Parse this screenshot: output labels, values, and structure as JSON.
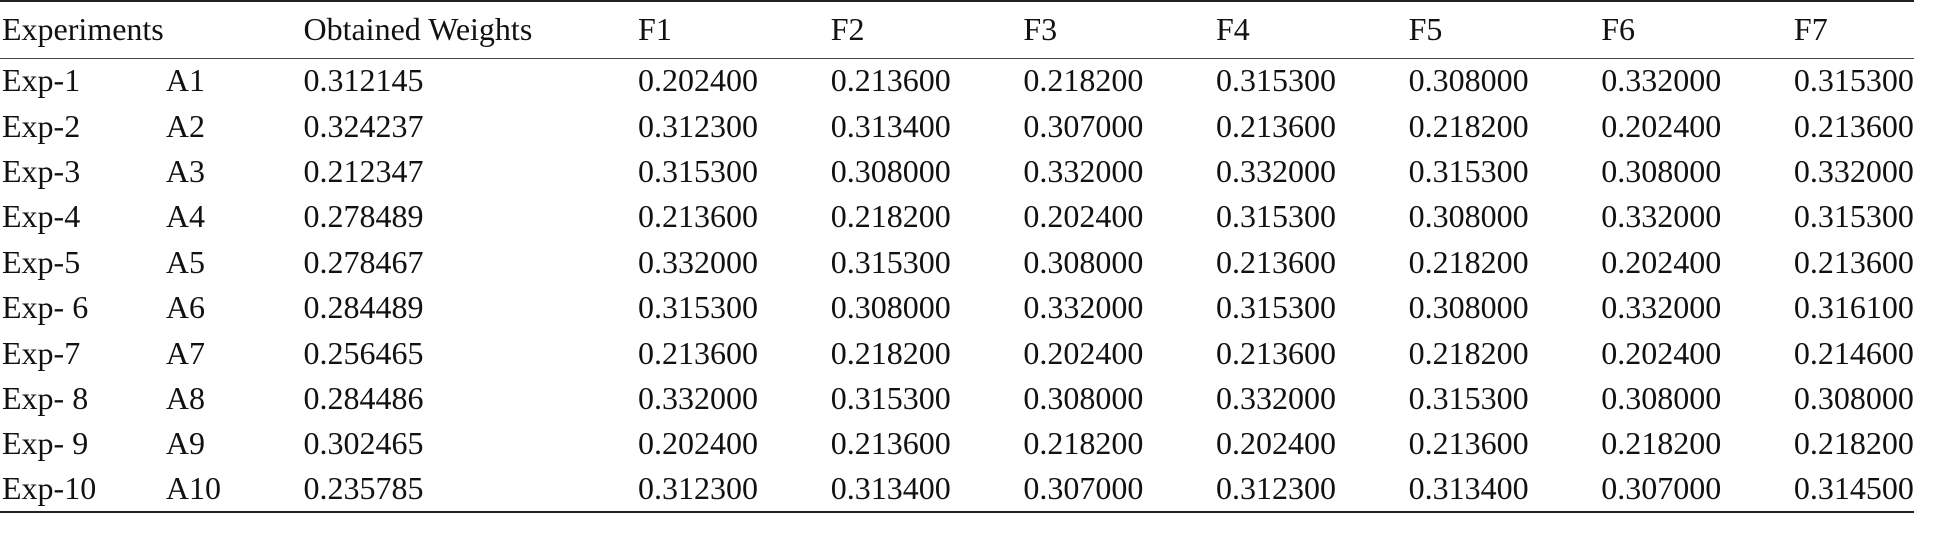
{
  "table": {
    "headers": {
      "experiments": "Experiments",
      "weights": "Obtained Weights",
      "f1": "F1",
      "f2": "F2",
      "f3": "F3",
      "f4": "F4",
      "f5": "F5",
      "f6": "F6",
      "f7": "F7"
    },
    "rows": [
      {
        "exp": "Exp-1",
        "alt": "A1",
        "weight": "0.312145",
        "f1": "0.202400",
        "f2": "0.213600",
        "f3": "0.218200",
        "f4": "0.315300",
        "f5": "0.308000",
        "f6": "0.332000",
        "f7": "0.315300"
      },
      {
        "exp": "Exp-2",
        "alt": "A2",
        "weight": "0.324237",
        "f1": "0.312300",
        "f2": "0.313400",
        "f3": "0.307000",
        "f4": "0.213600",
        "f5": "0.218200",
        "f6": "0.202400",
        "f7": "0.213600"
      },
      {
        "exp": "Exp-3",
        "alt": "A3",
        "weight": "0.212347",
        "f1": "0.315300",
        "f2": "0.308000",
        "f3": "0.332000",
        "f4": "0.332000",
        "f5": "0.315300",
        "f6": "0.308000",
        "f7": "0.332000"
      },
      {
        "exp": "Exp-4",
        "alt": "A4",
        "weight": "0.278489",
        "f1": "0.213600",
        "f2": "0.218200",
        "f3": "0.202400",
        "f4": "0.315300",
        "f5": "0.308000",
        "f6": "0.332000",
        "f7": "0.315300"
      },
      {
        "exp": "Exp-5",
        "alt": "A5",
        "weight": "0.278467",
        "f1": "0.332000",
        "f2": "0.315300",
        "f3": "0.308000",
        "f4": "0.213600",
        "f5": "0.218200",
        "f6": "0.202400",
        "f7": "0.213600"
      },
      {
        "exp": "Exp- 6",
        "alt": "A6",
        "weight": "0.284489",
        "f1": "0.315300",
        "f2": "0.308000",
        "f3": "0.332000",
        "f4": "0.315300",
        "f5": "0.308000",
        "f6": "0.332000",
        "f7": "0.316100"
      },
      {
        "exp": "Exp-7",
        "alt": "A7",
        "weight": "0.256465",
        "f1": "0.213600",
        "f2": "0.218200",
        "f3": "0.202400",
        "f4": "0.213600",
        "f5": "0.218200",
        "f6": "0.202400",
        "f7": "0.214600"
      },
      {
        "exp": "Exp- 8",
        "alt": "A8",
        "weight": "0.284486",
        "f1": "0.332000",
        "f2": "0.315300",
        "f3": "0.308000",
        "f4": "0.332000",
        "f5": "0.315300",
        "f6": "0.308000",
        "f7": "0.308000"
      },
      {
        "exp": "Exp- 9",
        "alt": "A9",
        "weight": "0.302465",
        "f1": "0.202400",
        "f2": "0.213600",
        "f3": "0.218200",
        "f4": "0.202400",
        "f5": "0.213600",
        "f6": "0.218200",
        "f7": "0.218200"
      },
      {
        "exp": "Exp-10",
        "alt": "A10",
        "weight": "0.235785",
        "f1": "0.312300",
        "f2": "0.313400",
        "f3": "0.307000",
        "f4": "0.312300",
        "f5": "0.313400",
        "f6": "0.307000",
        "f7": "0.314500"
      }
    ]
  }
}
